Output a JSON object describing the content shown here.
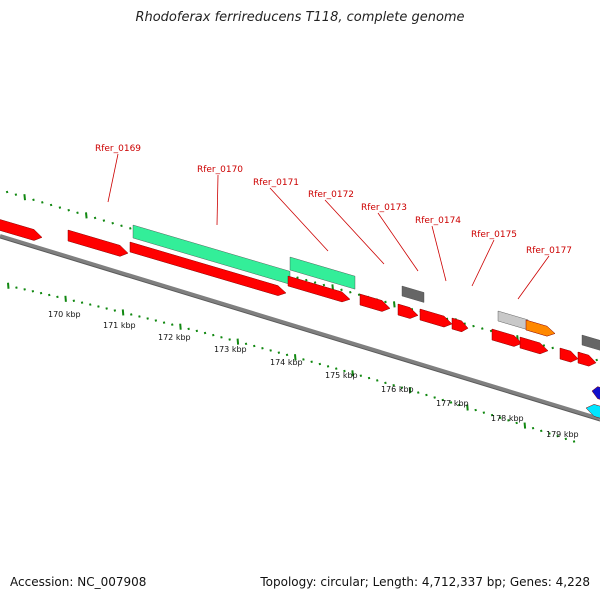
{
  "title": "Rhodoferax ferrireducens T118, complete genome",
  "footer": {
    "accession": "Accession: NC_007908",
    "summary": "Topology: circular; Length: 4,712,337 bp; Genes: 4,228"
  },
  "colors": {
    "backbone": "#808080",
    "backbone_edge": "#5a5a5a",
    "tick": "#118811",
    "forward_cds": "#ff0000",
    "reverse_cds": "#ff0000",
    "rna": "#33ee99",
    "pseudo": "#666666",
    "misc_light": "#c8c8c8",
    "misc_orange": "#ff8800",
    "blue": "#1010cc",
    "cyan": "#00e5ff",
    "label_line": "#cc0000"
  },
  "ruler": {
    "labels": [
      "170 kbp",
      "171 kbp",
      "172 kbp",
      "173 kbp",
      "174 kbp",
      "175 kbp",
      "176 kbp",
      "177 kbp",
      "178 kbp",
      "179 kbp"
    ]
  },
  "gene_labels": [
    "Rfer_0169",
    "Rfer_0170",
    "Rfer_0171",
    "Rfer_0172",
    "Rfer_0173",
    "Rfer_0174",
    "Rfer_0175",
    "Rfer_0177"
  ]
}
